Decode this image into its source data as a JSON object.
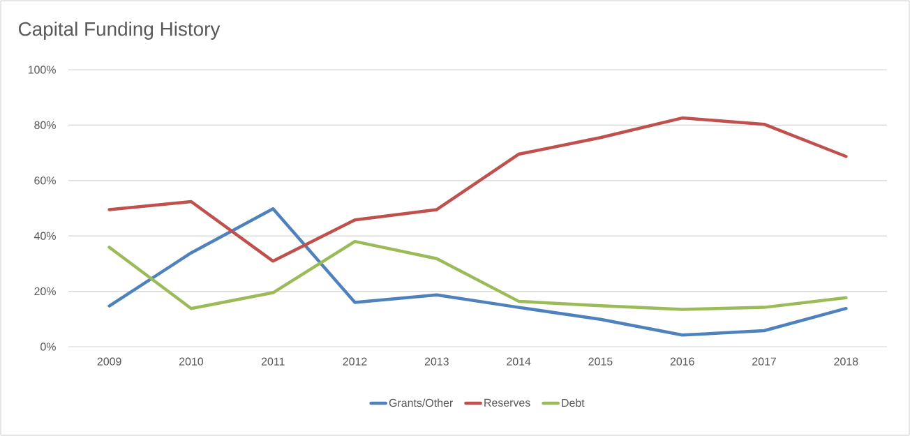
{
  "chart_data": {
    "type": "line",
    "title": "Capital Funding History",
    "categories": [
      "2009",
      "2010",
      "2011",
      "2012",
      "2013",
      "2014",
      "2015",
      "2016",
      "2017",
      "2018"
    ],
    "series": [
      {
        "name": "Grants/Other",
        "color": "#4f81bd",
        "values": [
          14.7,
          33.9,
          49.8,
          16.0,
          18.7,
          14.2,
          9.9,
          4.2,
          5.8,
          13.8
        ]
      },
      {
        "name": "Reserves",
        "color": "#c0504d",
        "values": [
          49.5,
          52.4,
          30.9,
          45.8,
          49.5,
          69.5,
          75.5,
          82.6,
          80.3,
          68.7
        ]
      },
      {
        "name": "Debt",
        "color": "#9bbb59",
        "values": [
          35.9,
          13.8,
          19.5,
          38.0,
          31.8,
          16.4,
          14.8,
          13.5,
          14.2,
          17.7
        ]
      }
    ],
    "ylim": [
      0,
      100
    ],
    "yticks": [
      {
        "value": 0,
        "label": "0%"
      },
      {
        "value": 20,
        "label": "20%"
      },
      {
        "value": 40,
        "label": "40%"
      },
      {
        "value": 60,
        "label": "60%"
      },
      {
        "value": 80,
        "label": "80%"
      },
      {
        "value": 100,
        "label": "100%"
      }
    ],
    "grid": "y",
    "legend": "bottom"
  }
}
